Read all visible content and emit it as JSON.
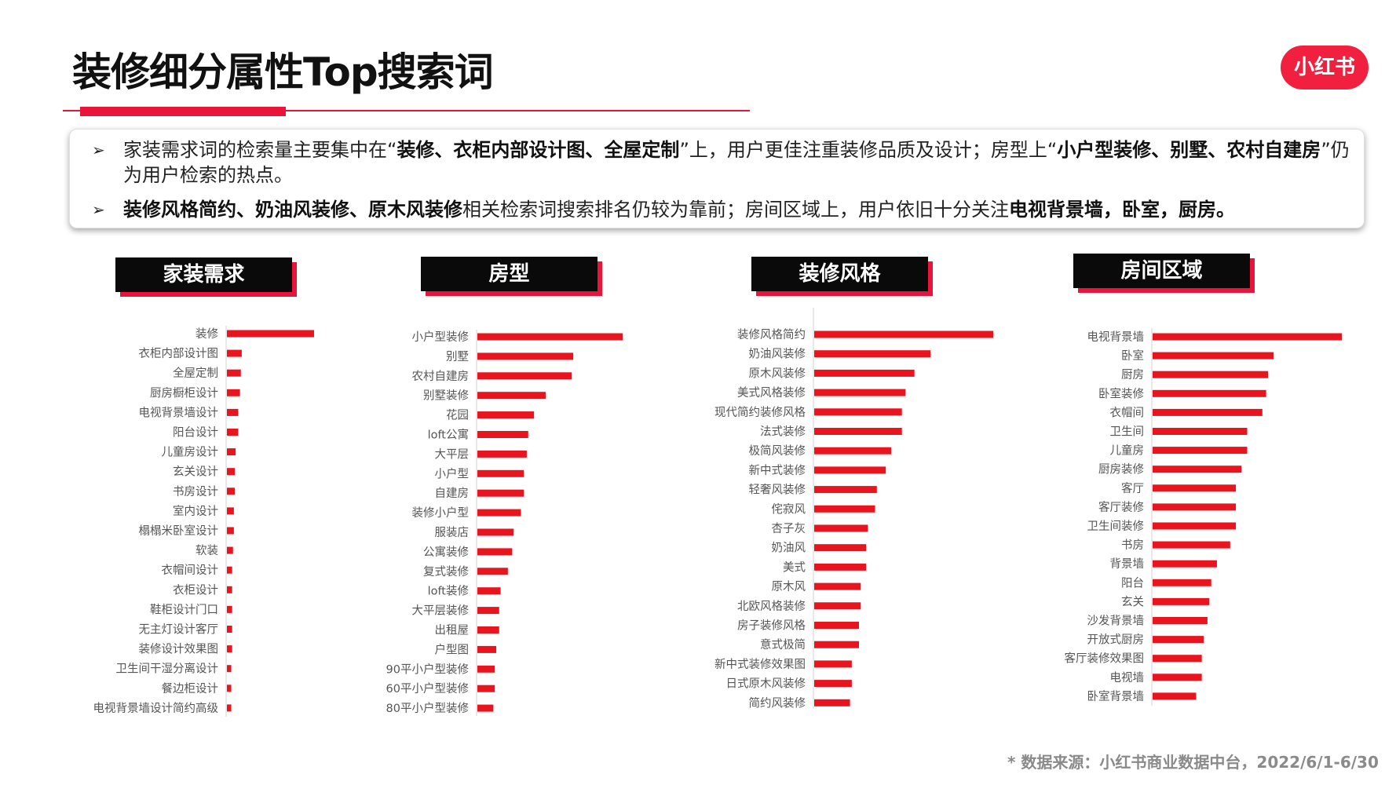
{
  "page": {
    "title": "装修细分属性Top搜索词",
    "logo": "小红书",
    "source": "* 数据来源：小红书商业数据中台，2022/6/1-6/30",
    "accent_color": "#e8143a"
  },
  "summary": {
    "bullets": [
      {
        "arrow": "➢",
        "segments": [
          {
            "text": "家装需求词的检索量主要集中在“",
            "bold": false
          },
          {
            "text": "装修、衣柜内部设计图、全屋定制",
            "bold": true
          },
          {
            "text": "”上，用户更佳注重装修品质及设计；房型上“",
            "bold": false
          },
          {
            "text": "小户型装修、别墅、农村自建房",
            "bold": true
          },
          {
            "text": "”仍为用户检索的热点。",
            "bold": false
          }
        ]
      },
      {
        "arrow": "➢",
        "segments": [
          {
            "text": "装修风格简约、奶油风装修、原木风装修",
            "bold": true
          },
          {
            "text": "相关检索词搜索排名仍较为靠前；房间区域上，用户依旧十分关注",
            "bold": false
          },
          {
            "text": "电视背景墙，卧室，厨房。",
            "bold": true
          }
        ]
      }
    ]
  },
  "chart_data": [
    {
      "type": "bar",
      "orientation": "horizontal",
      "title": "家装需求",
      "bar_color": "#e8141e",
      "categories": [
        "装修",
        "衣柜内部设计图",
        "全屋定制",
        "厨房橱柜设计",
        "电视背景墙设计",
        "阳台设计",
        "儿童房设计",
        "玄关设计",
        "书房设计",
        "室内设计",
        "榻榻米卧室设计",
        "软装",
        "衣帽间设计",
        "衣柜设计",
        "鞋柜设计门口",
        "无主灯设计客厅",
        "装修设计效果图",
        "卫生间干湿分离设计",
        "餐边柜设计",
        "电视背景墙设计简约高级"
      ],
      "values": [
        100,
        17,
        16,
        15,
        13,
        13,
        10,
        9,
        9,
        8,
        8,
        7,
        6,
        6,
        6,
        6,
        6,
        5,
        5,
        5
      ]
    },
    {
      "type": "bar",
      "orientation": "horizontal",
      "title": "房型",
      "bar_color": "#e8141e",
      "categories": [
        "小户型装修",
        "别墅",
        "农村自建房",
        "别墅装修",
        "花园",
        "loft公寓",
        "大平层",
        "小户型",
        "自建房",
        "装修小户型",
        "服装店",
        "公寓装修",
        "复式装修",
        "loft装修",
        "大平层装修",
        "出租屋",
        "户型图",
        "90平小户型装修",
        "60平小户型装修",
        "80平小户型装修"
      ],
      "values": [
        100,
        66,
        65,
        47,
        39,
        35,
        34,
        32,
        32,
        30,
        25,
        24,
        21,
        16,
        15,
        15,
        13,
        12,
        12,
        11
      ]
    },
    {
      "type": "bar",
      "orientation": "horizontal",
      "title": "装修风格",
      "bar_color": "#e8141e",
      "categories": [
        "装修风格简约",
        "奶油风装修",
        "原木风装修",
        "美式风格装修",
        "现代简约装修风格",
        "法式装修",
        "极简风装修",
        "新中式装修",
        "轻奢风装修",
        "侘寂风",
        "杏子灰",
        "奶油风",
        "美式",
        "原木风",
        "北欧风格装修",
        "房子装修风格",
        "意式极简",
        "新中式装修效果图",
        "日式原木风装修",
        "简约风装修"
      ],
      "values": [
        100,
        65,
        56,
        51,
        49,
        49,
        43,
        40,
        35,
        34,
        30,
        29,
        29,
        26,
        26,
        25,
        25,
        21,
        21,
        20
      ]
    },
    {
      "type": "bar",
      "orientation": "horizontal",
      "title": "房间区域",
      "bar_color": "#e8141e",
      "categories": [
        "电视背景墙",
        "卧室",
        "厨房",
        "卧室装修",
        "衣帽间",
        "卫生间",
        "儿童房",
        "厨房装修",
        "客厅",
        "客厅装修",
        "卫生间装修",
        "书房",
        "背景墙",
        "阳台",
        "玄关",
        "沙发背景墙",
        "开放式厨房",
        "客厅装修效果图",
        "电视墙",
        "卧室背景墙"
      ],
      "values": [
        100,
        64,
        61,
        60,
        58,
        50,
        50,
        47,
        44,
        44,
        44,
        41,
        34,
        31,
        30,
        29,
        27,
        26,
        26,
        23
      ]
    }
  ]
}
